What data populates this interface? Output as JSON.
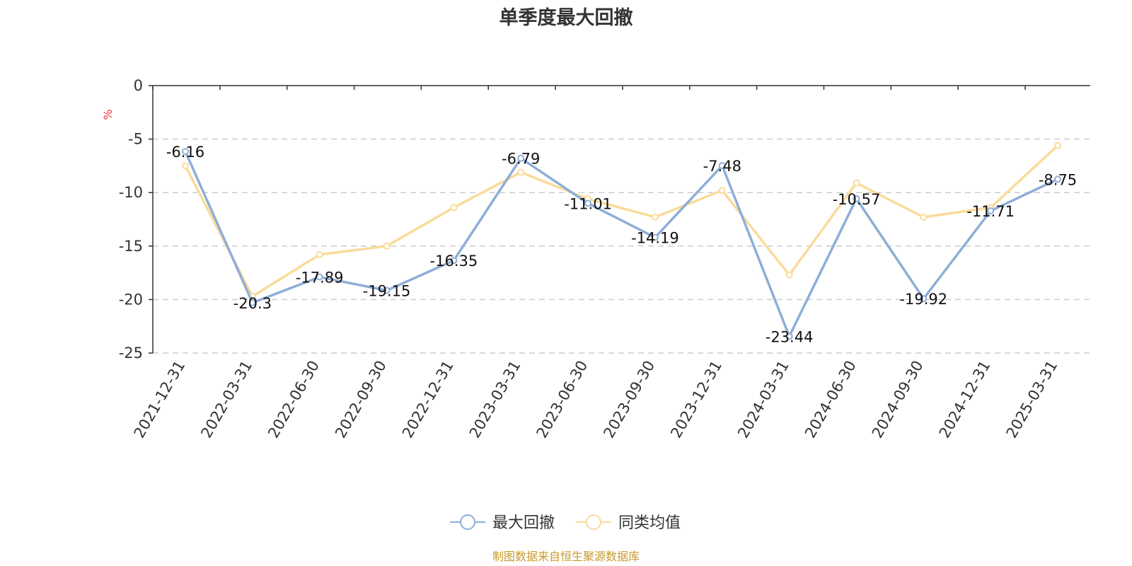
{
  "chart_data": {
    "type": "line",
    "title": "单季度最大回撤",
    "ylabel": "%",
    "xlabel": "",
    "categories": [
      "2021-12-31",
      "2022-03-31",
      "2022-06-30",
      "2022-09-30",
      "2022-12-31",
      "2023-03-31",
      "2023-06-30",
      "2023-09-30",
      "2023-12-31",
      "2024-03-31",
      "2024-06-30",
      "2024-09-30",
      "2024-12-31",
      "2025-03-31"
    ],
    "ylim": [
      -25,
      0
    ],
    "yticks": [
      0,
      -5,
      -10,
      -15,
      -20,
      -25
    ],
    "grid": true,
    "legend_position": "bottom-center",
    "series": [
      {
        "name": "最大回撤",
        "color": "#8eaed8",
        "values": [
          -6.16,
          -20.3,
          -17.89,
          -19.15,
          -16.35,
          -6.79,
          -11.01,
          -14.19,
          -7.48,
          -23.44,
          -10.57,
          -19.92,
          -11.71,
          -8.75
        ],
        "labels": [
          "-6.16",
          "-20.3",
          "-17.89",
          "-19.15",
          "-16.35",
          "-6.79",
          "-11.01",
          "-14.19",
          "-7.48",
          "-23.44",
          "-10.57",
          "-19.92",
          "-11.71",
          "-8.75"
        ]
      },
      {
        "name": "同类均值",
        "color": "#fadb9a",
        "values": [
          -7.5,
          -19.7,
          -15.8,
          -15.0,
          -11.4,
          -8.1,
          -10.6,
          -12.3,
          -9.8,
          -17.7,
          -9.1,
          -12.3,
          -11.4,
          -5.6
        ]
      }
    ],
    "source": "制图数据来自恒生聚源数据库",
    "colors": {
      "ylabel": "#e8343a",
      "source": "#c79a2e",
      "axis": "#333333",
      "grid": "#cccccc"
    }
  }
}
